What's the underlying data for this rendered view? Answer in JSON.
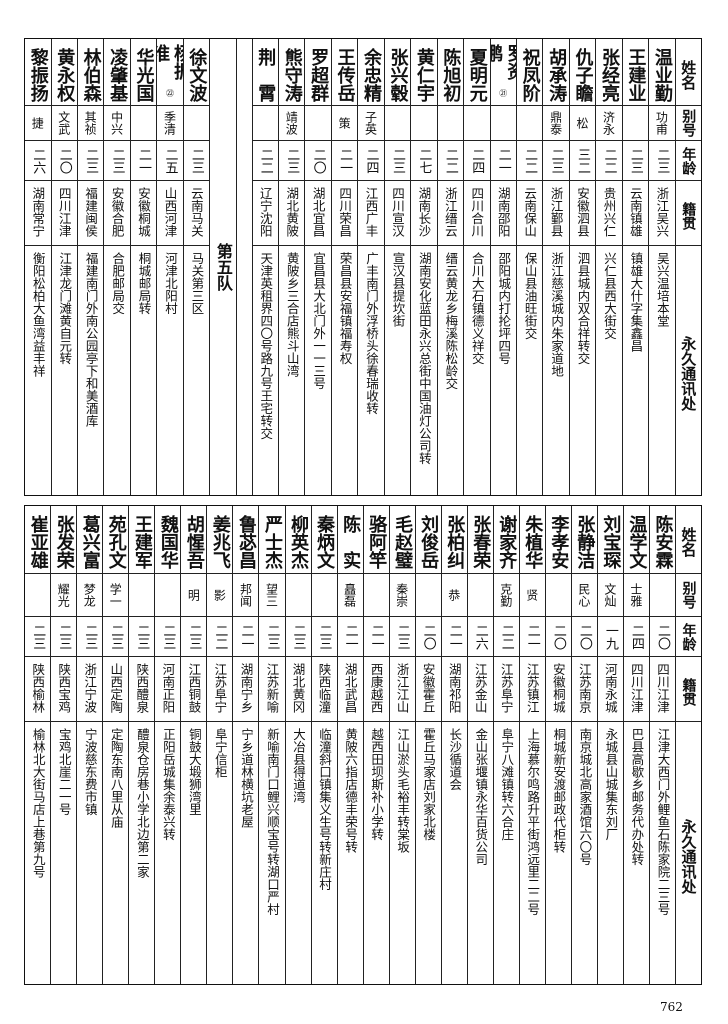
{
  "headers": {
    "name": "姓名",
    "alias": "别号",
    "age": "年龄",
    "origin": "籍贯",
    "address": "永久通讯处"
  },
  "top": {
    "rows": [
      {
        "name": "温业勤",
        "alias": "功甫",
        "age": "二三",
        "origin": "浙江吴兴",
        "address": "吴兴温培本堂"
      },
      {
        "name": "王建业",
        "alias": "",
        "age": "二三",
        "origin": "云南镇雄",
        "address": "镇雄大什字集鑫昌"
      },
      {
        "name": "张经亮",
        "alias": "济永",
        "age": "二二",
        "origin": "贵州兴仁",
        "address": "兴仁县西大街交"
      },
      {
        "name": "仇子瞻",
        "alias": "松",
        "age": "三二",
        "origin": "安徽泗县",
        "address": "泗县城内双合祥转交"
      },
      {
        "name": "胡承涛",
        "alias": "鼎泰",
        "age": "二三",
        "origin": "浙江鄞县",
        "address": "浙江慈溪城内朱家道地"
      },
      {
        "name": "祝凤阶",
        "alias": "",
        "age": "二二",
        "origin": "云南保山",
        "address": "保山县油旺街交"
      },
      {
        "name": "罗资鹏",
        "note": "㉑",
        "alias": "",
        "age": "二一",
        "origin": "湖南邵阳",
        "address": "邵阳城内打抡坪四号"
      },
      {
        "name": "夏明元",
        "alias": "",
        "age": "二四",
        "origin": "四川合川",
        "address": "合川大石镇德义祥交"
      },
      {
        "name": "陈旭初",
        "alias": "",
        "age": "二二",
        "origin": "浙江缙云",
        "address": "缙云黄龙乡梅溪陈松龄交"
      },
      {
        "name": "黄仁宇",
        "alias": "",
        "age": "二七",
        "origin": "湖南长沙",
        "address": "湖南安化蓝田永兴总街中国油灯公司转"
      },
      {
        "name": "张兴毂",
        "alias": "",
        "age": "二三",
        "origin": "四川宣汉",
        "address": "宣汉县提坎街"
      },
      {
        "name": "余忠精",
        "alias": "子英",
        "age": "二四",
        "origin": "江西广丰",
        "address": "广丰南门外浮桥头徐春瑞收转"
      },
      {
        "name": "王传岳",
        "alias": "策",
        "age": "二一",
        "origin": "四川荣昌",
        "address": "荣昌县安福镇福寿权"
      },
      {
        "name": "罗超群",
        "alias": "",
        "age": "二〇",
        "origin": "湖北宜昌",
        "address": "宜昌县大北门外一一三号"
      },
      {
        "name": "熊守涛",
        "alias": "靖波",
        "age": "二三",
        "origin": "湖北黄陂",
        "address": "黄陂乡三合店熊斗山湾"
      },
      {
        "name": "荆　霄",
        "alias": "",
        "age": "二二",
        "origin": "辽宁沈阳",
        "address": "天津英租界四〇号路九号王宅转交"
      }
    ],
    "divider": "第五队",
    "rows2": [
      {
        "name": "徐文波",
        "alias": "",
        "age": "二三",
        "origin": "云南马关",
        "address": "马关第三区"
      },
      {
        "name": "杨振淮",
        "note": "㉒",
        "alias": "季清",
        "age": "二五",
        "origin": "山西河津",
        "address": "河津北阳村"
      },
      {
        "name": "华光国",
        "alias": "",
        "age": "二一",
        "origin": "安徽桐城",
        "address": "桐城邮局转"
      },
      {
        "name": "凌肇基",
        "alias": "中兴",
        "age": "二三",
        "origin": "安徽合肥",
        "address": "合肥邮局交"
      },
      {
        "name": "林伯森",
        "alias": "其祯",
        "age": "二三",
        "origin": "福建闽侯",
        "address": "福建南门外南公园亭下和美酒库"
      },
      {
        "name": "黄永权",
        "alias": "文武",
        "age": "二〇",
        "origin": "四川江津",
        "address": "江津龙门滩黄自元转"
      },
      {
        "name": "黎振扬",
        "alias": "捷",
        "age": "二六",
        "origin": "湖南常宁",
        "address": "衡阳松柏大鱼湾益丰祥"
      }
    ]
  },
  "bottom": {
    "rows": [
      {
        "name": "陈安霖",
        "alias": "",
        "age": "二〇",
        "origin": "四川江津",
        "address": "江津大西门外鲤鱼石陈家院二三号"
      },
      {
        "name": "温学文",
        "alias": "士雅",
        "age": "二四",
        "origin": "四川江津",
        "address": "巴县高歇乡邮务代办处转"
      },
      {
        "name": "刘宝琛",
        "alias": "文灿",
        "age": "一九",
        "origin": "河南永城",
        "address": "永城县山城集东刘厂"
      },
      {
        "name": "张静洁",
        "alias": "民心",
        "age": "二〇",
        "origin": "江苏南京",
        "address": "南京城北高家酒馆六〇号"
      },
      {
        "name": "李孝安",
        "alias": "",
        "age": "二〇",
        "origin": "安徽桐城",
        "address": "桐城新安渡邮政代柜转"
      },
      {
        "name": "朱植华",
        "alias": "贤",
        "age": "二一",
        "origin": "江苏镇江",
        "address": "上海慕尔鸣路升平街鸿远里二二号"
      },
      {
        "name": "谢家齐",
        "alias": "克勤",
        "age": "二二",
        "origin": "江苏阜宁",
        "address": "阜宁八滩镇转六合庄"
      },
      {
        "name": "张春荣",
        "alias": "",
        "age": "二六",
        "origin": "江苏金山",
        "address": "金山张堰镇永华百货公司"
      },
      {
        "name": "张柏纠",
        "alias": "恭",
        "age": "二一",
        "origin": "湖南祁阳",
        "address": "长沙循道会"
      },
      {
        "name": "刘俊岳",
        "alias": "",
        "age": "二〇",
        "origin": "安徽霍丘",
        "address": "霍丘马家店刘家北楼"
      },
      {
        "name": "毛赵璧",
        "alias": "秦崇",
        "age": "二三",
        "origin": "浙江江山",
        "address": "江山淤头毛裕丰转棠坂"
      },
      {
        "name": "骆阿竿",
        "alias": "",
        "age": "二一",
        "origin": "西康越西",
        "address": "越西田坝斯补小学转"
      },
      {
        "name": "陈　实",
        "alias": "矗磊",
        "age": "二一",
        "origin": "湖北武昌",
        "address": "黄陂六指店德丰荣号转"
      },
      {
        "name": "秦炳文",
        "alias": "",
        "age": "二三",
        "origin": "陕西临潼",
        "address": "临潼斜口镇集义生号转新庄村"
      },
      {
        "name": "柳英杰",
        "alias": "",
        "age": "二三",
        "origin": "湖北黄冈",
        "address": "大冶县得道湾"
      },
      {
        "name": "严士杰",
        "alias": "望三",
        "age": "二三",
        "origin": "江苏新喻",
        "address": "新喻南门口鲤兴顺宝号转湖口严村"
      },
      {
        "name": "鲁苾昌",
        "alias": "邦闻",
        "age": "二一",
        "origin": "湖南宁乡",
        "address": "宁乡道林横坑老屋"
      },
      {
        "name": "姜兆飞",
        "alias": "影",
        "age": "二二",
        "origin": "江苏阜宁",
        "address": "阜宁信柜"
      },
      {
        "name": "胡惺吾",
        "alias": "明",
        "age": "二三",
        "origin": "江西铜鼓",
        "address": "铜鼓大塅狮湾里"
      },
      {
        "name": "魏国华",
        "alias": "",
        "age": "二三",
        "origin": "河南正阳",
        "address": "正阳岳城集余泰兴转"
      },
      {
        "name": "王建军",
        "alias": "",
        "age": "二三",
        "origin": "陕西醴泉",
        "address": "醴泉仓房巷小学北边第二家"
      },
      {
        "name": "苑孔文",
        "alias": "学一",
        "age": "二三",
        "origin": "山西定陶",
        "address": "定陶东南八里从庙"
      },
      {
        "name": "葛兴富",
        "alias": "梦龙",
        "age": "二三",
        "origin": "浙江宁波",
        "address": "宁波慈东费市镇"
      },
      {
        "name": "张发荣",
        "alias": "耀光",
        "age": "二三",
        "origin": "陕西宝鸡",
        "address": "宝鸡北崖二一号"
      },
      {
        "name": "崔亚雄",
        "alias": "",
        "age": "二三",
        "origin": "陕西榆林",
        "address": "榆林北大街马店上巷第九号"
      }
    ]
  },
  "page_number": "762"
}
